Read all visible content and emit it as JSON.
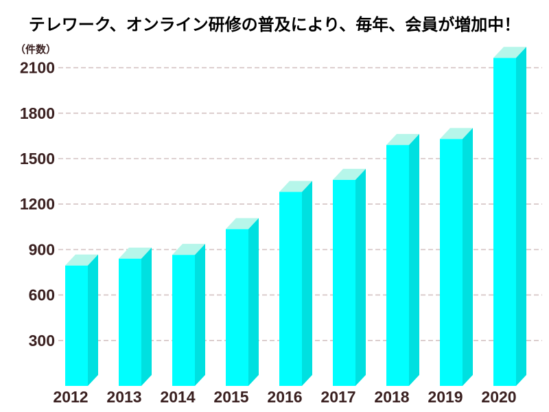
{
  "chart_data": {
    "type": "bar",
    "title": "テレワーク、オンライン研修の普及により、毎年、会員が増加中！",
    "unit_label": "（件数）",
    "categories": [
      "2012",
      "2013",
      "2014",
      "2015",
      "2016",
      "2017",
      "2018",
      "2019",
      "2020"
    ],
    "values": [
      795,
      840,
      865,
      1035,
      1280,
      1360,
      1590,
      1630,
      2165
    ],
    "yticks": [
      300,
      600,
      900,
      1200,
      1500,
      1800,
      2100
    ],
    "ylim": [
      0,
      2200
    ],
    "xlabel": "",
    "ylabel": "（件数）",
    "legend_position": "none",
    "grid": "horizontal-dashed",
    "bar_style": "3d-cyan",
    "colors": {
      "bar_front": "#00ffff",
      "bar_side": "#00e0e0",
      "bar_top": "#b6f6ea",
      "gridline": "#d4c2c2",
      "axis_label": "#3a2020",
      "title": "#000000",
      "background": "#ffffff"
    }
  }
}
